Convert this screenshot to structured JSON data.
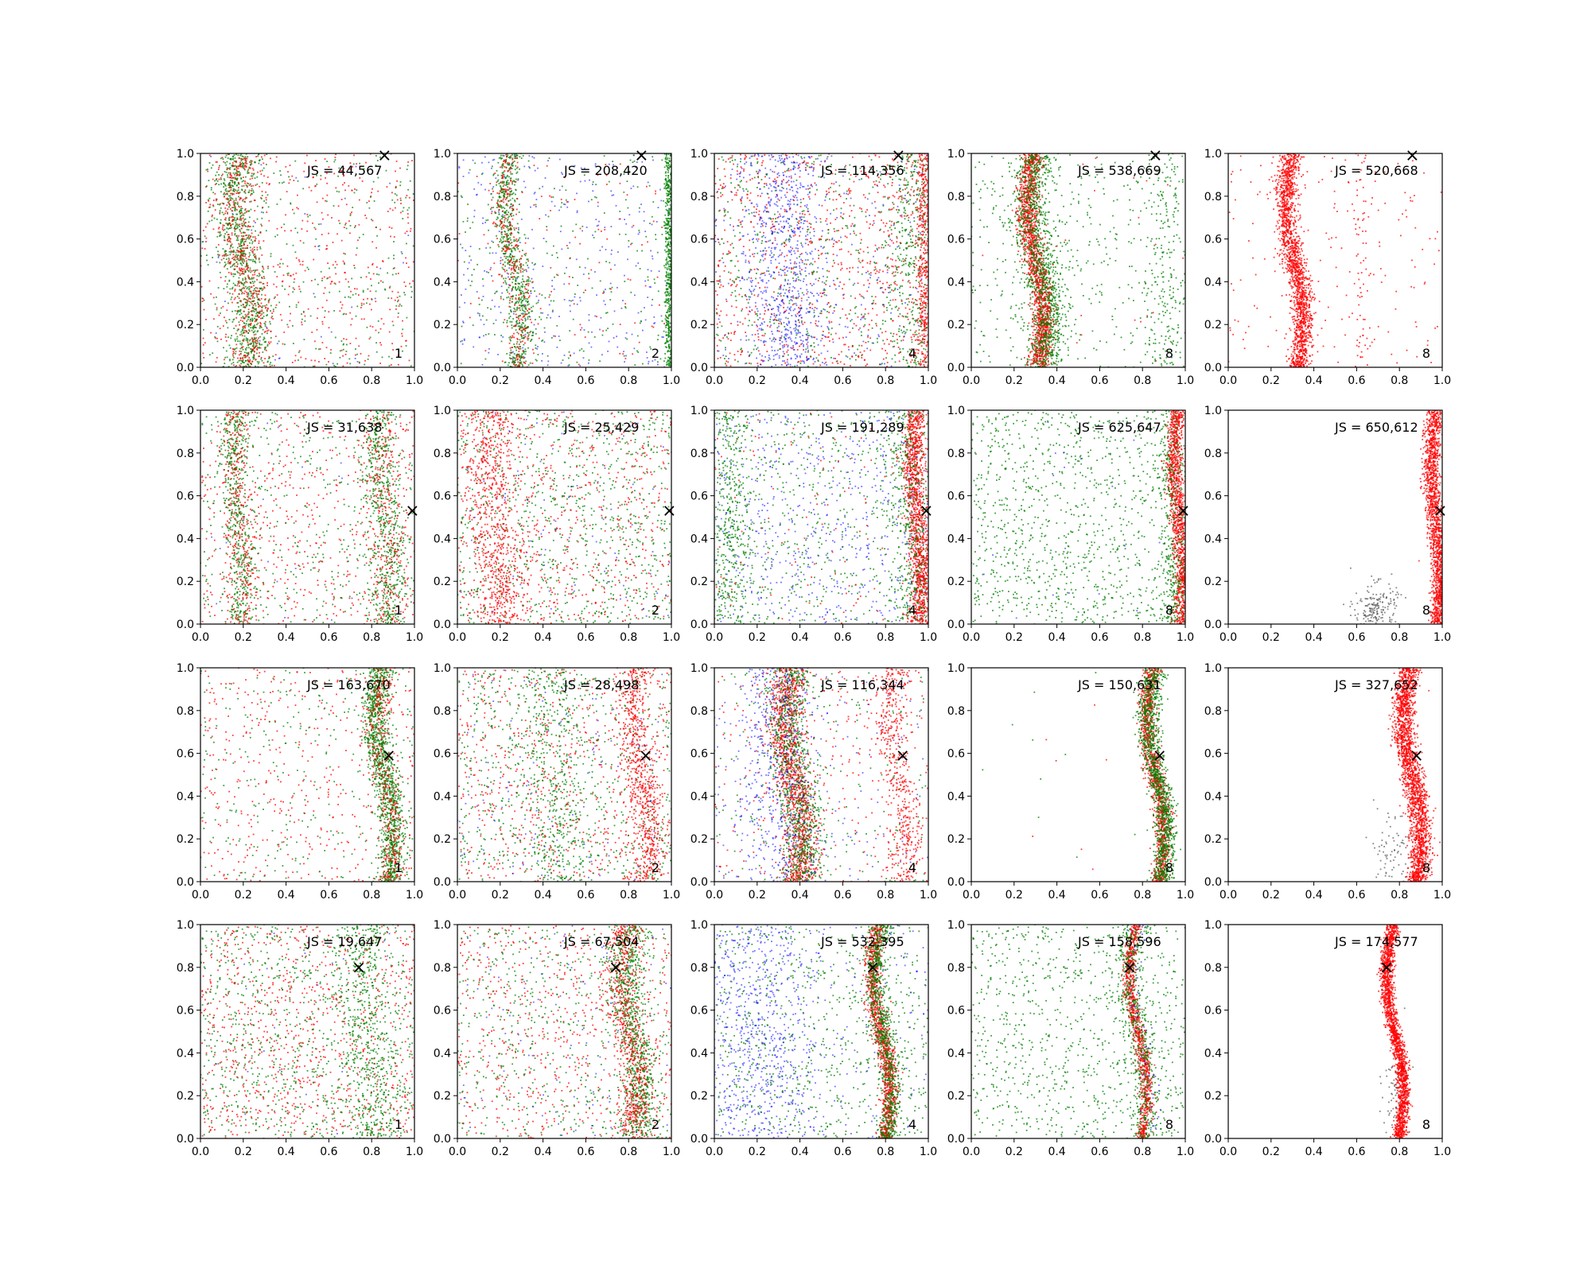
{
  "figure": {
    "background": "#ffffff",
    "point_colors": {
      "red": "#ff0000",
      "green": "#008000",
      "blue": "#0000ff",
      "gray": "#555555"
    }
  },
  "chart_data": {
    "type": "scatter",
    "layout": "grid",
    "rows": 4,
    "cols": 5,
    "xlim": [
      0,
      1
    ],
    "ylim": [
      0,
      1
    ],
    "x_ticks": [
      "0.0",
      "0.2",
      "0.4",
      "0.6",
      "0.8",
      "1.0"
    ],
    "y_ticks": [
      "0.0",
      "0.2",
      "0.4",
      "0.6",
      "0.8",
      "1.0"
    ],
    "marker_symbol": "×",
    "panels": [
      {
        "row": 0,
        "col": 0,
        "js_label": "JS = 44,567",
        "corner_label": "1",
        "marker": [
          0.86,
          0.99
        ],
        "bands": [
          {
            "color": "green",
            "x": 0.2,
            "w": 0.05,
            "amp": 0.04,
            "n": 900
          },
          {
            "color": "red",
            "x": 0.2,
            "w": 0.05,
            "amp": 0.04,
            "n": 500
          }
        ],
        "uniform": [
          {
            "color": "red",
            "n": 500
          },
          {
            "color": "green",
            "n": 350
          },
          {
            "color": "blue",
            "n": 40
          }
        ]
      },
      {
        "row": 0,
        "col": 1,
        "js_label": "JS = 208,420",
        "corner_label": "2",
        "marker": [
          0.86,
          0.99
        ],
        "bands": [
          {
            "color": "green",
            "x": 0.26,
            "w": 0.03,
            "amp": 0.04,
            "n": 700
          },
          {
            "color": "red",
            "x": 0.26,
            "w": 0.03,
            "amp": 0.04,
            "n": 300
          },
          {
            "color": "green",
            "x": 0.99,
            "w": 0.01,
            "amp": 0.0,
            "n": 600
          }
        ],
        "uniform": [
          {
            "color": "blue",
            "n": 350
          },
          {
            "color": "green",
            "n": 250
          },
          {
            "color": "red",
            "n": 120
          }
        ]
      },
      {
        "row": 0,
        "col": 2,
        "js_label": "JS = 114,356",
        "corner_label": "4",
        "marker": [
          0.86,
          0.99
        ],
        "bands": [
          {
            "color": "blue",
            "x": 0.33,
            "w": 0.09,
            "amp": 0.02,
            "n": 700
          },
          {
            "color": "red",
            "x": 0.98,
            "w": 0.02,
            "amp": 0.0,
            "n": 500
          },
          {
            "color": "green",
            "x": 0.92,
            "w": 0.05,
            "amp": 0.0,
            "n": 300
          }
        ],
        "uniform": [
          {
            "color": "red",
            "n": 900
          },
          {
            "color": "green",
            "n": 500
          },
          {
            "color": "blue",
            "n": 250
          }
        ]
      },
      {
        "row": 0,
        "col": 3,
        "js_label": "JS = 538,669",
        "corner_label": "8",
        "marker": [
          0.86,
          0.99
        ],
        "bands": [
          {
            "color": "red",
            "x": 0.3,
            "w": 0.025,
            "amp": 0.04,
            "n": 1600
          },
          {
            "color": "green",
            "x": 0.32,
            "w": 0.045,
            "amp": 0.04,
            "n": 1200
          },
          {
            "color": "green",
            "x": 0.9,
            "w": 0.05,
            "amp": 0.0,
            "n": 200
          }
        ],
        "uniform": [
          {
            "color": "green",
            "n": 450
          },
          {
            "color": "red",
            "n": 30
          }
        ]
      },
      {
        "row": 0,
        "col": 4,
        "js_label": "JS = 520,668",
        "corner_label": "8",
        "marker": [
          0.86,
          0.99
        ],
        "bands": [
          {
            "color": "red",
            "x": 0.31,
            "w": 0.025,
            "amp": 0.04,
            "n": 1800
          },
          {
            "color": "red",
            "x": 0.62,
            "w": 0.02,
            "amp": 0.0,
            "n": 60
          }
        ],
        "uniform": [
          {
            "color": "red",
            "n": 180
          }
        ]
      },
      {
        "row": 1,
        "col": 0,
        "js_label": "JS = 31,638",
        "corner_label": "1",
        "marker": [
          0.99,
          0.53
        ],
        "bands": [
          {
            "color": "green",
            "x": 0.18,
            "w": 0.035,
            "amp": 0.02,
            "n": 500
          },
          {
            "color": "red",
            "x": 0.18,
            "w": 0.035,
            "amp": 0.02,
            "n": 300
          },
          {
            "color": "green",
            "x": 0.86,
            "w": 0.045,
            "amp": 0.02,
            "n": 600
          },
          {
            "color": "red",
            "x": 0.86,
            "w": 0.045,
            "amp": 0.02,
            "n": 300
          }
        ],
        "uniform": [
          {
            "color": "red",
            "n": 550
          },
          {
            "color": "green",
            "n": 450
          },
          {
            "color": "blue",
            "n": 20
          }
        ]
      },
      {
        "row": 1,
        "col": 1,
        "js_label": "JS = 25,429",
        "corner_label": "2",
        "marker": [
          0.99,
          0.53
        ],
        "bands": [
          {
            "color": "red",
            "x": 0.18,
            "w": 0.06,
            "amp": 0.03,
            "n": 700
          }
        ],
        "uniform": [
          {
            "color": "green",
            "n": 900
          },
          {
            "color": "red",
            "n": 700
          },
          {
            "color": "blue",
            "n": 80
          }
        ]
      },
      {
        "row": 1,
        "col": 2,
        "js_label": "JS = 191,289",
        "corner_label": "4",
        "marker": [
          0.99,
          0.53
        ],
        "bands": [
          {
            "color": "red",
            "x": 0.95,
            "w": 0.025,
            "amp": 0.02,
            "n": 1300
          },
          {
            "color": "green",
            "x": 0.9,
            "w": 0.05,
            "amp": 0.02,
            "n": 400
          },
          {
            "color": "green",
            "x": 0.08,
            "w": 0.05,
            "amp": 0.0,
            "n": 400
          }
        ],
        "uniform": [
          {
            "color": "blue",
            "n": 600
          },
          {
            "color": "green",
            "n": 600
          },
          {
            "color": "red",
            "n": 120
          }
        ]
      },
      {
        "row": 1,
        "col": 3,
        "js_label": "JS = 625,647",
        "corner_label": "8",
        "marker": [
          0.99,
          0.53
        ],
        "bands": [
          {
            "color": "red",
            "x": 0.97,
            "w": 0.02,
            "amp": 0.02,
            "n": 1300
          },
          {
            "color": "green",
            "x": 0.94,
            "w": 0.03,
            "amp": 0.02,
            "n": 300
          }
        ],
        "uniform": [
          {
            "color": "green",
            "n": 1100
          },
          {
            "color": "blue",
            "n": 20
          }
        ]
      },
      {
        "row": 1,
        "col": 4,
        "js_label": "JS = 650,612",
        "corner_label": "8",
        "marker": [
          0.99,
          0.53
        ],
        "bands": [
          {
            "color": "red",
            "x": 0.97,
            "w": 0.02,
            "amp": 0.02,
            "n": 1700
          }
        ],
        "clusters": [
          {
            "color": "gray",
            "cx": 0.69,
            "cy": 0.07,
            "sx": 0.05,
            "sy": 0.06,
            "n": 200
          }
        ],
        "uniform": []
      },
      {
        "row": 2,
        "col": 0,
        "js_label": "JS = 163,670",
        "corner_label": "1",
        "marker": [
          0.88,
          0.59
        ],
        "bands": [
          {
            "color": "green",
            "x": 0.86,
            "w": 0.03,
            "amp": 0.04,
            "n": 1300
          },
          {
            "color": "red",
            "x": 0.86,
            "w": 0.03,
            "amp": 0.04,
            "n": 400
          }
        ],
        "uniform": [
          {
            "color": "red",
            "n": 450
          },
          {
            "color": "green",
            "n": 280
          }
        ]
      },
      {
        "row": 2,
        "col": 1,
        "js_label": "JS = 28,498",
        "corner_label": "2",
        "marker": [
          0.88,
          0.59
        ],
        "bands": [
          {
            "color": "red",
            "x": 0.86,
            "w": 0.04,
            "amp": 0.04,
            "n": 700
          },
          {
            "color": "green",
            "x": 0.45,
            "w": 0.08,
            "amp": 0.02,
            "n": 400
          }
        ],
        "uniform": [
          {
            "color": "red",
            "n": 700
          },
          {
            "color": "green",
            "n": 700
          },
          {
            "color": "blue",
            "n": 120
          }
        ]
      },
      {
        "row": 2,
        "col": 2,
        "js_label": "JS = 116,344",
        "corner_label": "4",
        "marker": [
          0.88,
          0.59
        ],
        "bands": [
          {
            "color": "red",
            "x": 0.37,
            "w": 0.04,
            "amp": 0.04,
            "n": 1300
          },
          {
            "color": "green",
            "x": 0.38,
            "w": 0.05,
            "amp": 0.04,
            "n": 900
          },
          {
            "color": "red",
            "x": 0.86,
            "w": 0.04,
            "amp": 0.04,
            "n": 500
          },
          {
            "color": "blue",
            "x": 0.3,
            "w": 0.09,
            "amp": 0.0,
            "n": 500
          }
        ],
        "uniform": [
          {
            "color": "red",
            "n": 300
          },
          {
            "color": "green",
            "n": 200
          },
          {
            "color": "blue",
            "n": 150
          }
        ]
      },
      {
        "row": 2,
        "col": 3,
        "js_label": "JS = 150,631",
        "corner_label": "8",
        "marker": [
          0.88,
          0.59
        ],
        "bands": [
          {
            "color": "red",
            "x": 0.86,
            "w": 0.02,
            "amp": 0.04,
            "n": 1200
          },
          {
            "color": "green",
            "x": 0.87,
            "w": 0.025,
            "amp": 0.04,
            "n": 1300
          }
        ],
        "uniform": [
          {
            "color": "green",
            "n": 15
          },
          {
            "color": "red",
            "n": 8
          }
        ]
      },
      {
        "row": 2,
        "col": 4,
        "js_label": "JS = 327,652",
        "corner_label": "8",
        "marker": [
          0.88,
          0.59
        ],
        "bands": [
          {
            "color": "red",
            "x": 0.86,
            "w": 0.025,
            "amp": 0.04,
            "n": 2200
          }
        ],
        "clusters": [
          {
            "color": "gray",
            "cx": 0.75,
            "cy": 0.12,
            "sx": 0.05,
            "sy": 0.12,
            "n": 90
          }
        ],
        "uniform": []
      },
      {
        "row": 3,
        "col": 0,
        "js_label": "JS = 19,647",
        "corner_label": "1",
        "marker": [
          0.74,
          0.8
        ],
        "bands": [
          {
            "color": "green",
            "x": 0.78,
            "w": 0.06,
            "amp": 0.03,
            "n": 500
          }
        ],
        "uniform": [
          {
            "color": "red",
            "n": 900
          },
          {
            "color": "green",
            "n": 900
          },
          {
            "color": "blue",
            "n": 20
          }
        ]
      },
      {
        "row": 3,
        "col": 1,
        "js_label": "JS = 67,504",
        "corner_label": "2",
        "marker": [
          0.74,
          0.8
        ],
        "bands": [
          {
            "color": "green",
            "x": 0.82,
            "w": 0.04,
            "amp": 0.04,
            "n": 900
          },
          {
            "color": "red",
            "x": 0.8,
            "w": 0.04,
            "amp": 0.04,
            "n": 700
          }
        ],
        "uniform": [
          {
            "color": "red",
            "n": 650
          },
          {
            "color": "green",
            "n": 550
          },
          {
            "color": "blue",
            "n": 100
          }
        ]
      },
      {
        "row": 3,
        "col": 2,
        "js_label": "JS = 532,395",
        "corner_label": "4",
        "marker": [
          0.74,
          0.8
        ],
        "bands": [
          {
            "color": "red",
            "x": 0.78,
            "w": 0.02,
            "amp": 0.04,
            "n": 1200
          },
          {
            "color": "green",
            "x": 0.79,
            "w": 0.025,
            "amp": 0.04,
            "n": 900
          },
          {
            "color": "blue",
            "x": 0.2,
            "w": 0.14,
            "amp": 0.0,
            "n": 700
          }
        ],
        "uniform": [
          {
            "color": "green",
            "n": 700
          },
          {
            "color": "blue",
            "n": 200
          }
        ]
      },
      {
        "row": 3,
        "col": 3,
        "js_label": "JS = 158,596",
        "corner_label": "8",
        "marker": [
          0.74,
          0.8
        ],
        "bands": [
          {
            "color": "red",
            "x": 0.78,
            "w": 0.015,
            "amp": 0.04,
            "n": 1000
          },
          {
            "color": "green",
            "x": 0.78,
            "w": 0.03,
            "amp": 0.04,
            "n": 500
          },
          {
            "color": "blue",
            "x": 0.8,
            "w": 0.02,
            "amp": 0.04,
            "n": 60
          }
        ],
        "uniform": [
          {
            "color": "green",
            "n": 900
          }
        ]
      },
      {
        "row": 3,
        "col": 4,
        "js_label": "JS = 174,577",
        "corner_label": "8",
        "marker": [
          0.74,
          0.8
        ],
        "bands": [
          {
            "color": "red",
            "x": 0.78,
            "w": 0.015,
            "amp": 0.04,
            "n": 2000
          }
        ],
        "clusters": [
          {
            "color": "gray",
            "cx": 0.78,
            "cy": 0.2,
            "sx": 0.03,
            "sy": 0.15,
            "n": 80
          }
        ],
        "uniform": []
      }
    ]
  }
}
